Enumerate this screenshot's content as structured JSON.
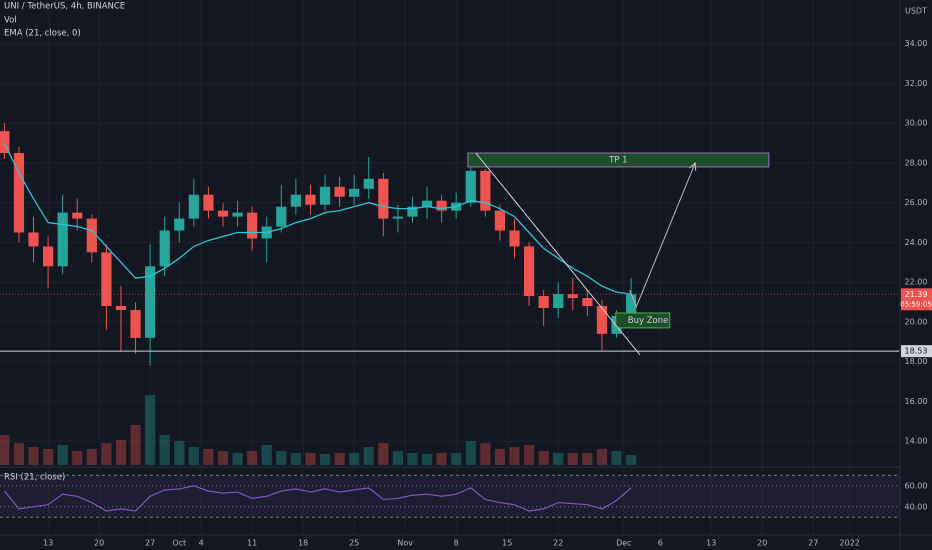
{
  "chart_data": {
    "type": "candlestick",
    "title": "UNI / TetherUS, 4h, BINANCE",
    "indicator_labels": [
      "Vol",
      "EMA (21, close, 0)"
    ],
    "currency": "USDT",
    "x": [
      -6,
      -4,
      -2,
      0,
      2,
      4,
      6,
      8,
      10,
      12,
      14,
      16,
      18,
      20,
      22,
      24,
      26,
      28,
      30,
      32,
      34,
      36,
      38,
      40,
      42,
      44,
      46,
      48,
      50,
      52,
      54,
      56,
      58,
      60,
      62,
      64,
      66,
      68,
      70,
      72,
      74,
      76,
      78,
      80
    ],
    "open": [
      29.6,
      28.5,
      24.5,
      23.8,
      22.8,
      25.5,
      25.2,
      23.5,
      20.8,
      20.6,
      19.2,
      22.8,
      24.6,
      25.2,
      26.4,
      25.6,
      25.3,
      25.5,
      24.2,
      24.8,
      25.8,
      26.4,
      25.9,
      26.8,
      26.3,
      26.7,
      27.2,
      25.2,
      25.3,
      25.8,
      26.1,
      25.6,
      26.0,
      27.6,
      25.6,
      24.6,
      23.8,
      21.3,
      20.7,
      21.4,
      21.2,
      20.8,
      19.4,
      20.3
    ],
    "high": [
      30.0,
      28.8,
      25.3,
      24.3,
      26.4,
      26.2,
      25.4,
      23.9,
      21.8,
      21.0,
      23.9,
      25.3,
      26.0,
      27.2,
      26.8,
      26.0,
      26.1,
      25.8,
      25.3,
      26.9,
      27.2,
      26.9,
      27.4,
      27.3,
      27.4,
      28.3,
      27.5,
      25.9,
      26.3,
      26.8,
      26.4,
      26.5,
      28.5,
      27.7,
      25.9,
      25.2,
      24.0,
      21.6,
      22.0,
      22.2,
      21.6,
      21.1,
      20.6,
      22.2
    ],
    "low": [
      28.2,
      24.0,
      23.0,
      21.7,
      22.4,
      24.6,
      23.0,
      19.6,
      18.5,
      18.4,
      17.8,
      22.3,
      24.0,
      24.8,
      25.2,
      24.8,
      24.8,
      23.6,
      23.0,
      24.5,
      25.4,
      25.4,
      25.6,
      25.8,
      25.9,
      26.2,
      24.3,
      24.5,
      25.0,
      25.2,
      25.0,
      25.2,
      25.8,
      25.3,
      24.1,
      23.2,
      20.8,
      19.8,
      20.2,
      20.6,
      20.3,
      18.6,
      19.2,
      20.1
    ],
    "close": [
      28.5,
      24.5,
      23.8,
      22.8,
      25.5,
      25.2,
      23.5,
      20.8,
      20.6,
      19.2,
      22.8,
      24.6,
      25.2,
      26.4,
      25.6,
      25.3,
      25.5,
      24.2,
      24.8,
      25.8,
      26.4,
      25.9,
      26.8,
      26.3,
      26.7,
      27.2,
      25.2,
      25.3,
      25.8,
      26.1,
      25.6,
      26.0,
      27.6,
      25.6,
      24.6,
      23.8,
      21.3,
      20.7,
      21.4,
      21.2,
      20.8,
      19.4,
      20.3,
      21.39
    ],
    "ema": [
      29.0,
      27.5,
      26.2,
      25.0,
      24.9,
      24.8,
      24.6,
      23.8,
      23.0,
      22.2,
      22.3,
      22.7,
      23.2,
      23.8,
      24.1,
      24.3,
      24.5,
      24.5,
      24.5,
      24.7,
      25.0,
      25.2,
      25.5,
      25.6,
      25.8,
      26.0,
      25.8,
      25.7,
      25.7,
      25.8,
      25.7,
      25.8,
      26.1,
      26.0,
      25.7,
      25.3,
      24.5,
      23.7,
      23.2,
      22.7,
      22.3,
      21.8,
      21.5,
      21.4
    ],
    "volume": [
      30,
      22,
      18,
      16,
      20,
      14,
      16,
      22,
      25,
      40,
      70,
      30,
      24,
      18,
      16,
      14,
      12,
      14,
      20,
      14,
      12,
      12,
      11,
      12,
      12,
      18,
      22,
      14,
      12,
      11,
      12,
      12,
      24,
      22,
      16,
      18,
      20,
      14,
      12,
      12,
      12,
      16,
      14,
      10
    ],
    "volume_ylim": [
      0,
      100
    ],
    "rsi_label": "RSI (21, close)",
    "rsi": [
      55,
      38,
      40,
      42,
      52,
      50,
      44,
      36,
      38,
      36,
      50,
      56,
      57,
      60,
      55,
      53,
      54,
      48,
      50,
      55,
      57,
      54,
      57,
      54,
      56,
      58,
      47,
      48,
      51,
      52,
      50,
      52,
      58,
      47,
      44,
      42,
      36,
      38,
      44,
      43,
      42,
      38,
      46,
      58
    ],
    "rsi_ylim": [
      16,
      75
    ],
    "rsi_yticks": [
      {
        "value": 40,
        "label": "40.00"
      },
      {
        "value": 60,
        "label": "60.00"
      }
    ],
    "rsi_bands": [
      30,
      70
    ],
    "xlim": [
      -6.6,
      116.9
    ],
    "xticks": [
      {
        "value": 0,
        "label": "13"
      },
      {
        "value": 7,
        "label": "20"
      },
      {
        "value": 14,
        "label": "27"
      },
      {
        "value": 18,
        "label": "Oct"
      },
      {
        "value": 21,
        "label": "4"
      },
      {
        "value": 28,
        "label": "11"
      },
      {
        "value": 35,
        "label": "18"
      },
      {
        "value": 42,
        "label": "25"
      },
      {
        "value": 49,
        "label": "Nov"
      },
      {
        "value": 56,
        "label": "8"
      },
      {
        "value": 63,
        "label": "15"
      },
      {
        "value": 70,
        "label": "22"
      },
      {
        "value": 79,
        "label": "Dec"
      },
      {
        "value": 84,
        "label": "6"
      },
      {
        "value": 91,
        "label": "13"
      },
      {
        "value": 98,
        "label": "20"
      },
      {
        "value": 105,
        "label": "27"
      },
      {
        "value": 110,
        "label": "2022"
      }
    ],
    "ylim": [
      12.8,
      36.2
    ],
    "yticks": [
      {
        "value": 14,
        "label": "14.00"
      },
      {
        "value": 16,
        "label": "16.00"
      },
      {
        "value": 18,
        "label": "18.00"
      },
      {
        "value": 20,
        "label": "20.00"
      },
      {
        "value": 22,
        "label": "22.00"
      },
      {
        "value": 24,
        "label": "24.00"
      },
      {
        "value": 26,
        "label": "26.00"
      },
      {
        "value": 28,
        "label": "28.00"
      },
      {
        "value": 30,
        "label": "30.00"
      },
      {
        "value": 32,
        "label": "32.00"
      },
      {
        "value": 34,
        "label": "34.00"
      }
    ],
    "grid": true,
    "up_color": "#26a69a",
    "down_color": "#ef5350",
    "ema_color": "#26c6da",
    "rsi_color": "#7e57c2",
    "countdown": "05:59:05",
    "support": 18.53,
    "boxes": [
      {
        "label": "TP 1",
        "x": [
          57.6,
          98.9
        ],
        "y": [
          27.8,
          28.5
        ],
        "color": "#1e4d2b",
        "border": "#9c6fb8"
      },
      {
        "label": "Buy Zone",
        "x": [
          77.9,
          85.3
        ],
        "y": [
          19.7,
          20.45
        ],
        "color": "#1e4d2b",
        "border": "#4caf50"
      }
    ],
    "trend_line": {
      "x": [
        58.7,
        81.2
      ],
      "y": [
        28.5,
        18.35
      ]
    },
    "arrow": {
      "x": [
        79.8,
        80.7,
        88.8
      ],
      "y": [
        21.6,
        20.75,
        28.0
      ]
    }
  }
}
